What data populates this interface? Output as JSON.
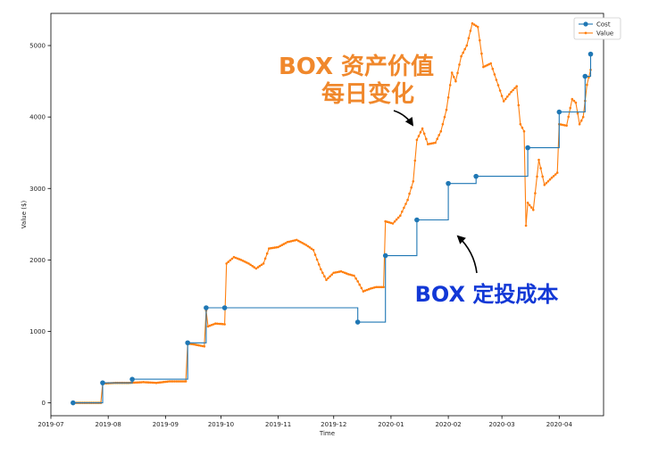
{
  "chart_data": {
    "type": "line",
    "title": "",
    "xlabel": "Time",
    "ylabel": "Value ($)",
    "xlim": [
      "2019-07-01",
      "2020-04-25"
    ],
    "ylim": [
      -180,
      5450
    ],
    "x_ticks": [
      "2019-07",
      "2019-08",
      "2019-09",
      "2019-10",
      "2019-11",
      "2019-12",
      "2020-01",
      "2020-02",
      "2020-03",
      "2020-04"
    ],
    "y_ticks": [
      0,
      1000,
      2000,
      3000,
      4000,
      5000
    ],
    "grid": false,
    "legend": {
      "position": "top-right",
      "entries": [
        "Cost",
        "Value"
      ]
    },
    "colors": {
      "Cost": "#1f77b4",
      "Value": "#ff7f0e",
      "blue_annotation": "#1238d6",
      "arrow": "#000000"
    },
    "annotations": [
      {
        "lines": [
          "BOX 资产价值",
          "每日变化"
        ],
        "color": "#f0882c"
      },
      {
        "lines": [
          "BOX 定投成本"
        ],
        "color": "#1238d6"
      }
    ],
    "series": [
      {
        "name": "Cost",
        "style": "steps-post",
        "marker": "circle",
        "points": [
          [
            "2019-07-13",
            0
          ],
          [
            "2019-07-29",
            280
          ],
          [
            "2019-08-14",
            330
          ],
          [
            "2019-09-13",
            840
          ],
          [
            "2019-09-23",
            1330
          ],
          [
            "2019-10-03",
            1330
          ],
          [
            "2019-12-14",
            1130
          ],
          [
            "2019-12-29",
            2060
          ],
          [
            "2020-01-15",
            2560
          ],
          [
            "2020-02-01",
            3070
          ],
          [
            "2020-02-16",
            3170
          ],
          [
            "2020-03-15",
            3570
          ],
          [
            "2020-04-01",
            4070
          ],
          [
            "2020-04-15",
            4570
          ],
          [
            "2020-04-18",
            4880
          ]
        ]
      },
      {
        "name": "Value",
        "marker": "small-dot",
        "points": [
          [
            "2019-07-13",
            0
          ],
          [
            "2019-07-28",
            0
          ],
          [
            "2019-07-29",
            270
          ],
          [
            "2019-08-05",
            280
          ],
          [
            "2019-08-12",
            280
          ],
          [
            "2019-08-20",
            290
          ],
          [
            "2019-08-27",
            280
          ],
          [
            "2019-09-03",
            300
          ],
          [
            "2019-09-12",
            300
          ],
          [
            "2019-09-13",
            830
          ],
          [
            "2019-09-16",
            820
          ],
          [
            "2019-09-22",
            790
          ],
          [
            "2019-09-23",
            1290
          ],
          [
            "2019-09-24",
            1070
          ],
          [
            "2019-09-28",
            1110
          ],
          [
            "2019-10-03",
            1100
          ],
          [
            "2019-10-04",
            1950
          ],
          [
            "2019-10-08",
            2040
          ],
          [
            "2019-10-12",
            2000
          ],
          [
            "2019-10-16",
            1950
          ],
          [
            "2019-10-20",
            1880
          ],
          [
            "2019-10-24",
            1950
          ],
          [
            "2019-10-27",
            2160
          ],
          [
            "2019-11-01",
            2180
          ],
          [
            "2019-11-06",
            2250
          ],
          [
            "2019-11-11",
            2280
          ],
          [
            "2019-11-16",
            2210
          ],
          [
            "2019-11-20",
            2140
          ],
          [
            "2019-11-24",
            1870
          ],
          [
            "2019-11-27",
            1720
          ],
          [
            "2019-12-01",
            1820
          ],
          [
            "2019-12-05",
            1840
          ],
          [
            "2019-12-09",
            1800
          ],
          [
            "2019-12-12",
            1780
          ],
          [
            "2019-12-14",
            1700
          ],
          [
            "2019-12-17",
            1560
          ],
          [
            "2019-12-21",
            1600
          ],
          [
            "2019-12-24",
            1620
          ],
          [
            "2019-12-28",
            1620
          ],
          [
            "2019-12-29",
            2540
          ],
          [
            "2020-01-02",
            2510
          ],
          [
            "2020-01-06",
            2620
          ],
          [
            "2020-01-10",
            2840
          ],
          [
            "2020-01-13",
            3100
          ],
          [
            "2020-01-15",
            3680
          ],
          [
            "2020-01-18",
            3840
          ],
          [
            "2020-01-21",
            3620
          ],
          [
            "2020-01-25",
            3640
          ],
          [
            "2020-01-28",
            3800
          ],
          [
            "2020-01-31",
            4100
          ],
          [
            "2020-02-03",
            4620
          ],
          [
            "2020-02-05",
            4500
          ],
          [
            "2020-02-08",
            4850
          ],
          [
            "2020-02-11",
            5000
          ],
          [
            "2020-02-14",
            5310
          ],
          [
            "2020-02-17",
            5260
          ],
          [
            "2020-02-20",
            4700
          ],
          [
            "2020-02-24",
            4750
          ],
          [
            "2020-02-27",
            4520
          ],
          [
            "2020-03-02",
            4220
          ],
          [
            "2020-03-06",
            4350
          ],
          [
            "2020-03-09",
            4430
          ],
          [
            "2020-03-11",
            3900
          ],
          [
            "2020-03-13",
            3800
          ],
          [
            "2020-03-14",
            2480
          ],
          [
            "2020-03-15",
            2800
          ],
          [
            "2020-03-18",
            2700
          ],
          [
            "2020-03-21",
            3400
          ],
          [
            "2020-03-24",
            3050
          ],
          [
            "2020-03-28",
            3150
          ],
          [
            "2020-03-31",
            3220
          ],
          [
            "2020-04-01",
            3900
          ],
          [
            "2020-04-05",
            3880
          ],
          [
            "2020-04-08",
            4250
          ],
          [
            "2020-04-10",
            4200
          ],
          [
            "2020-04-12",
            3900
          ],
          [
            "2020-04-14",
            4000
          ],
          [
            "2020-04-16",
            4450
          ],
          [
            "2020-04-18",
            4660
          ]
        ]
      }
    ]
  }
}
